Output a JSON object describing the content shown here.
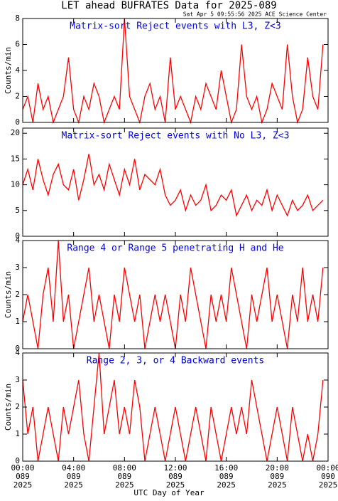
{
  "title": "LET ahead BUFRATES Data for 2025-089",
  "timestamp": "Sat Apr  5 09:55:56 2025 ACE Science Center",
  "x_axis": {
    "label": "UTC Day of Year",
    "xlim": [
      0,
      24
    ],
    "xticks": [
      {
        "value": 0,
        "label": "00:00",
        "day": "089",
        "year": "2025"
      },
      {
        "value": 4,
        "label": "04:00",
        "day": "089",
        "year": "2025"
      },
      {
        "value": 8,
        "label": "08:00",
        "day": "089",
        "year": "2025"
      },
      {
        "value": 12,
        "label": "12:00",
        "day": "089",
        "year": "2025"
      },
      {
        "value": 16,
        "label": "16:00",
        "day": "089",
        "year": "2025"
      },
      {
        "value": 20,
        "label": "20:00",
        "day": "089",
        "year": "2025"
      },
      {
        "value": 24,
        "label": "00:00",
        "day": "090",
        "year": "2025"
      }
    ]
  },
  "x": [
    0,
    0.4,
    0.8,
    1.2,
    1.6,
    2,
    2.4,
    2.8,
    3.2,
    3.6,
    4,
    4.4,
    4.8,
    5.2,
    5.6,
    6,
    6.4,
    6.8,
    7.2,
    7.6,
    8,
    8.4,
    8.8,
    9.2,
    9.6,
    10,
    10.4,
    10.8,
    11.2,
    11.6,
    12,
    12.4,
    12.8,
    13.2,
    13.6,
    14,
    14.4,
    14.8,
    15.2,
    15.6,
    16,
    16.4,
    16.8,
    17.2,
    17.6,
    18,
    18.4,
    18.8,
    19.2,
    19.6,
    20,
    20.4,
    20.8,
    21.2,
    21.6,
    22,
    22.4,
    22.8,
    23.2,
    23.6
  ],
  "chart_data": [
    {
      "type": "line",
      "title": "Matrix-sort Reject events with L3, Z<3",
      "ylabel": "Counts/min",
      "color": "#ff0000",
      "ylim": [
        0,
        8
      ],
      "yticks": [
        0,
        2,
        4,
        6,
        8
      ],
      "values": [
        1,
        2,
        0,
        3,
        1,
        2,
        0,
        1,
        2,
        5,
        1,
        0,
        2,
        1,
        3,
        2,
        0,
        1,
        2,
        1,
        8,
        2,
        1,
        0,
        2,
        3,
        1,
        2,
        0,
        5,
        1,
        2,
        1,
        0,
        2,
        1,
        3,
        2,
        1,
        4,
        2,
        0,
        1,
        6,
        2,
        1,
        2,
        0,
        1,
        3,
        2,
        1,
        6,
        2,
        0,
        1,
        5,
        2,
        1,
        6
      ]
    },
    {
      "type": "line",
      "title": "Matrix-sort Reject events with No L3, Z<3",
      "color": "#ff0000",
      "ylim": [
        0,
        21
      ],
      "yticks": [
        0,
        5,
        10,
        15,
        20
      ],
      "values": [
        10,
        13,
        9,
        15,
        11,
        8,
        12,
        14,
        10,
        9,
        13,
        7,
        11,
        16,
        10,
        12,
        9,
        14,
        11,
        8,
        13,
        10,
        15,
        9,
        12,
        11,
        10,
        13,
        8,
        6,
        7,
        9,
        5,
        8,
        6,
        7,
        10,
        5,
        6,
        8,
        7,
        9,
        4,
        6,
        8,
        5,
        7,
        6,
        9,
        5,
        8,
        6,
        4,
        7,
        5,
        6,
        8,
        5,
        6,
        7
      ]
    },
    {
      "type": "line",
      "title": "Range 4 or Range 5 penetrating H and He",
      "ylabel": "Counts/min",
      "color": "#ff0000",
      "ylim": [
        0,
        4
      ],
      "yticks": [
        0,
        1,
        2,
        3,
        4
      ],
      "values": [
        1,
        2,
        1,
        0,
        2,
        3,
        1,
        4,
        1,
        2,
        0,
        1,
        2,
        3,
        1,
        2,
        1,
        0,
        2,
        1,
        3,
        2,
        1,
        2,
        0,
        1,
        2,
        1,
        2,
        1,
        0,
        2,
        1,
        3,
        2,
        1,
        0,
        2,
        1,
        2,
        1,
        3,
        2,
        1,
        0,
        2,
        1,
        2,
        3,
        1,
        2,
        1,
        0,
        2,
        1,
        3,
        1,
        2,
        1,
        3
      ]
    },
    {
      "type": "line",
      "title": "Range 2, 3, or 4 Backward events",
      "ylabel": "Counts/min",
      "color": "#ff0000",
      "ylim": [
        0,
        4
      ],
      "yticks": [
        0,
        1,
        2,
        3,
        4
      ],
      "values": [
        3,
        1,
        2,
        0,
        1,
        2,
        1,
        0,
        2,
        1,
        2,
        3,
        1,
        0,
        2,
        4,
        1,
        2,
        3,
        1,
        2,
        1,
        3,
        2,
        0,
        1,
        2,
        1,
        0,
        1,
        2,
        1,
        0,
        1,
        2,
        1,
        0,
        2,
        1,
        0,
        1,
        2,
        1,
        2,
        1,
        3,
        2,
        1,
        0,
        1,
        2,
        1,
        0,
        2,
        1,
        0,
        1,
        0,
        1,
        3
      ]
    }
  ]
}
